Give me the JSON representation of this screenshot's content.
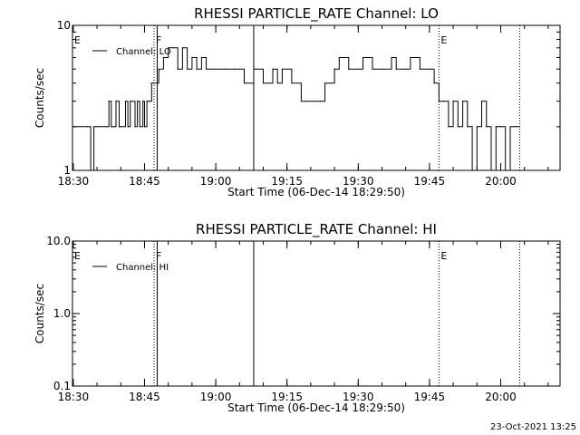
{
  "colors": {
    "background": "#ffffff",
    "foreground": "#000000"
  },
  "footer": {
    "timestamp": "23-Oct-2021 13:25"
  },
  "chart_data": [
    {
      "type": "line",
      "title": "RHESSI PARTICLE_RATE Channel: LO",
      "xlabel": "Start Time (06-Dec-14 18:29:50)",
      "ylabel": "Counts/sec",
      "y_scale": "log",
      "ylim": [
        1,
        10
      ],
      "xlim": [
        "18:29:50",
        "20:12:30"
      ],
      "x_ticks": [
        "18:30",
        "18:45",
        "19:00",
        "19:15",
        "19:30",
        "19:45",
        "20:00"
      ],
      "y_ticks": [
        "1",
        "10"
      ],
      "legend": {
        "placement": "top-left",
        "entries": [
          "Channel: LO"
        ]
      },
      "annotations": [
        {
          "text": "E",
          "time": "18:29:50"
        },
        {
          "text": "F",
          "time": "18:47:00"
        },
        {
          "text": "E",
          "time": "19:47:00"
        }
      ],
      "vertical_lines": [
        {
          "time": "18:47:00",
          "style": "dotted"
        },
        {
          "time": "18:47:40",
          "style": "solid"
        },
        {
          "time": "19:08:00",
          "style": "solid"
        },
        {
          "time": "19:47:00",
          "style": "dotted"
        },
        {
          "time": "20:04:00",
          "style": "dotted"
        }
      ],
      "series": [
        {
          "name": "Channel: LO",
          "x": [
            "18:30",
            "18:33",
            "18:33:40",
            "18:34:20",
            "18:35",
            "18:37",
            "18:37:30",
            "18:38",
            "18:38:40",
            "18:39",
            "18:39:40",
            "18:40",
            "18:41",
            "18:41:30",
            "18:42",
            "18:43",
            "18:43:30",
            "18:44",
            "18:44:40",
            "18:45",
            "18:45:30",
            "18:46",
            "18:46:30",
            "18:47",
            "18:48",
            "18:49",
            "18:50",
            "18:51",
            "18:52",
            "18:53",
            "18:54",
            "18:55",
            "18:56",
            "18:57",
            "18:58",
            "18:59",
            "19:00",
            "19:02",
            "19:04",
            "19:06",
            "19:08",
            "19:10",
            "19:12",
            "19:13",
            "19:14",
            "19:16",
            "19:18",
            "19:19",
            "19:21",
            "19:22",
            "19:23",
            "19:25",
            "19:26",
            "19:28",
            "19:30",
            "19:31",
            "19:33",
            "19:35",
            "19:37",
            "19:38",
            "19:40",
            "19:41",
            "19:43",
            "19:45",
            "19:46",
            "19:47",
            "19:48",
            "19:49",
            "19:50",
            "19:51",
            "19:52",
            "19:53",
            "19:54",
            "19:55",
            "19:56",
            "19:57",
            "19:58",
            "19:59",
            "20:00",
            "20:01",
            "20:02",
            "20:03",
            "20:04"
          ],
          "values": [
            2,
            2,
            1,
            2,
            2,
            2,
            3,
            2,
            2,
            3,
            2,
            2,
            3,
            2,
            3,
            2,
            3,
            2,
            3,
            2,
            3,
            3,
            4,
            4,
            5,
            6,
            7,
            7,
            5,
            7,
            5,
            6,
            5,
            6,
            5,
            5,
            5,
            5,
            5,
            4,
            5,
            4,
            5,
            4,
            5,
            4,
            3,
            3,
            3,
            3,
            4,
            5,
            6,
            5,
            5,
            6,
            5,
            5,
            6,
            5,
            5,
            6,
            5,
            5,
            4,
            3,
            3,
            2,
            3,
            2,
            3,
            2,
            1,
            2,
            3,
            2,
            1,
            2,
            2,
            1,
            2,
            2,
            2
          ]
        }
      ]
    },
    {
      "type": "line",
      "title": "RHESSI PARTICLE_RATE Channel: HI",
      "xlabel": "Start Time (06-Dec-14 18:29:50)",
      "ylabel": "Counts/sec",
      "y_scale": "log",
      "ylim": [
        0.1,
        10
      ],
      "xlim": [
        "18:29:50",
        "20:12:30"
      ],
      "x_ticks": [
        "18:30",
        "18:45",
        "19:00",
        "19:15",
        "19:30",
        "19:45",
        "20:00"
      ],
      "y_ticks": [
        "0.1",
        "1.0",
        "10.0"
      ],
      "legend": {
        "placement": "top-left",
        "entries": [
          "Channel: HI"
        ]
      },
      "annotations": [
        {
          "text": "E",
          "time": "18:29:50"
        },
        {
          "text": "F",
          "time": "18:47:00"
        },
        {
          "text": "E",
          "time": "19:47:00"
        }
      ],
      "vertical_lines": [
        {
          "time": "18:47:00",
          "style": "dotted"
        },
        {
          "time": "18:47:40",
          "style": "solid"
        },
        {
          "time": "19:08:00",
          "style": "solid"
        },
        {
          "time": "19:47:00",
          "style": "dotted"
        },
        {
          "time": "20:04:00",
          "style": "dotted"
        }
      ],
      "series": [
        {
          "name": "Channel: HI",
          "x": [],
          "values": []
        }
      ]
    }
  ]
}
